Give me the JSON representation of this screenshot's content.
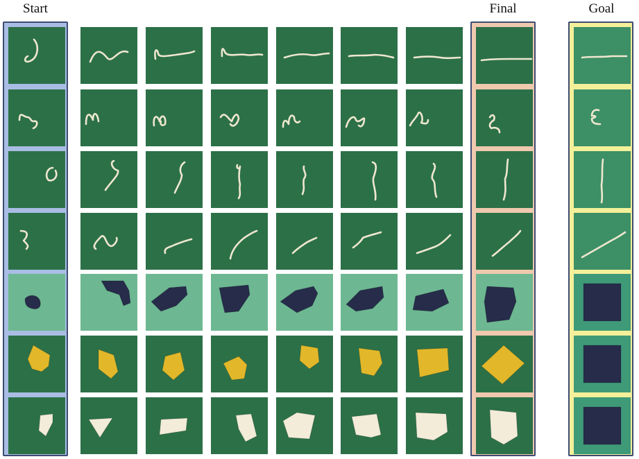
{
  "headers": {
    "start": "Start",
    "final": "Final",
    "goal": "Goal"
  },
  "colors": {
    "start_frame": "#a9bde4",
    "final_frame": "#efc9ae",
    "goal_frame": "#f4f09a",
    "frame_border": "#3d4b73",
    "felt_dark": "#2c7048",
    "felt_light": "#6db892",
    "rope": "#efe7cf",
    "navy_cloth": "#262c4a",
    "yellow_cloth": "#e2b82a",
    "white_cloth": "#f3ecd9"
  },
  "rows": [
    {
      "task": "rope-straighten",
      "object": "rope",
      "background": "dark"
    },
    {
      "task": "rope-e-shape",
      "object": "rope",
      "background": "dark"
    },
    {
      "task": "rope-vertical",
      "object": "rope",
      "background": "dark"
    },
    {
      "task": "rope-diagonal",
      "object": "rope",
      "background": "dark"
    },
    {
      "task": "navy-cloth-square",
      "object": "navy cloth",
      "background": "light"
    },
    {
      "task": "yellow-cloth-square",
      "object": "yellow cloth",
      "background": "dark"
    },
    {
      "task": "white-cloth-square",
      "object": "white cloth",
      "background": "dark"
    }
  ],
  "columns": [
    "start",
    "step-1",
    "step-2",
    "step-3",
    "step-4",
    "step-5",
    "step-6",
    "final",
    "goal"
  ]
}
